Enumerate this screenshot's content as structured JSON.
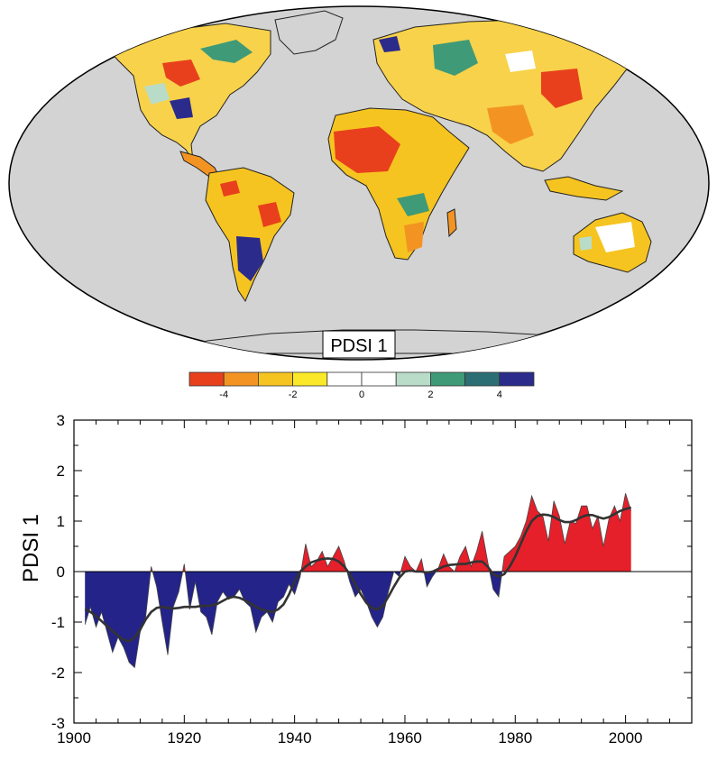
{
  "map": {
    "label": "PDSI 1",
    "colorbar": {
      "colors": [
        "#e8401c",
        "#f39422",
        "#f6c420",
        "#fbe829",
        "#ffffff",
        "#ffffff",
        "#b9dcc8",
        "#3f9a78",
        "#2b6f75",
        "#2b2b8c"
      ],
      "tick_labels": [
        "-4",
        "-2",
        "0",
        "2",
        "4"
      ]
    }
  },
  "chart_data": {
    "type": "area",
    "title": "",
    "xlabel": "",
    "ylabel": "PDSI 1",
    "xlim": [
      1900,
      2012
    ],
    "ylim": [
      -3,
      3
    ],
    "xticks": [
      1900,
      1920,
      1940,
      1960,
      1980,
      2000
    ],
    "yticks": [
      -3,
      -2,
      -1,
      0,
      1,
      2,
      3
    ],
    "colors": {
      "positive": "#e5202a",
      "negative": "#23238a",
      "smooth_line": "#333333"
    },
    "series": [
      {
        "x": [
          1902,
          1903,
          1904,
          1905,
          1906,
          1907,
          1908,
          1909,
          1910,
          1911,
          1912,
          1913,
          1914,
          1915,
          1916,
          1917,
          1918,
          1919,
          1920,
          1921,
          1922,
          1923,
          1924,
          1925,
          1926,
          1927,
          1928,
          1929,
          1930,
          1931,
          1932,
          1933,
          1934,
          1935,
          1936,
          1937,
          1938,
          1939,
          1940,
          1941,
          1942,
          1943,
          1944,
          1945,
          1946,
          1947,
          1948,
          1949,
          1950,
          1951,
          1952,
          1953,
          1954,
          1955,
          1956,
          1957,
          1958,
          1959,
          1960,
          1961,
          1962,
          1963,
          1964,
          1965,
          1966,
          1967,
          1968,
          1969,
          1970,
          1971,
          1972,
          1973,
          1974,
          1975,
          1976,
          1977,
          1978,
          1979,
          1980,
          1981,
          1982,
          1983,
          1984,
          1985,
          1986,
          1987,
          1988,
          1989,
          1990,
          1991,
          1992,
          1993,
          1994,
          1995,
          1996,
          1997,
          1998,
          1999,
          2000,
          2001
        ],
        "values": [
          -1.05,
          -0.7,
          -1.1,
          -0.8,
          -1.2,
          -1.6,
          -1.3,
          -1.5,
          -1.8,
          -1.9,
          -1.2,
          -0.9,
          0.1,
          -0.3,
          -1.0,
          -1.65,
          -0.7,
          -0.4,
          0.15,
          -0.75,
          -0.2,
          -0.8,
          -0.9,
          -1.25,
          -0.6,
          -0.4,
          -0.55,
          -0.5,
          -0.35,
          -0.6,
          -0.7,
          -1.2,
          -0.9,
          -0.8,
          -1.0,
          -0.6,
          -0.5,
          -0.25,
          -0.45,
          -0.1,
          0.55,
          0.1,
          0.2,
          0.4,
          0.1,
          0.3,
          0.5,
          0.2,
          -0.2,
          -0.5,
          -0.35,
          -0.6,
          -0.9,
          -1.1,
          -0.9,
          -0.4,
          0.0,
          -0.1,
          0.3,
          0.1,
          0.0,
          0.25,
          -0.3,
          -0.1,
          0.05,
          0.35,
          0.1,
          0.0,
          0.3,
          0.5,
          0.1,
          0.4,
          0.8,
          0.2,
          -0.35,
          -0.5,
          0.3,
          0.4,
          0.5,
          0.7,
          1.0,
          1.5,
          1.2,
          1.1,
          0.6,
          1.4,
          1.1,
          0.55,
          1.0,
          0.95,
          1.3,
          1.3,
          0.85,
          1.1,
          0.5,
          1.05,
          1.3,
          1.0,
          1.55,
          1.2
        ],
        "smooth": [
          -0.75,
          -0.8,
          -0.88,
          -0.98,
          -1.08,
          -1.18,
          -1.27,
          -1.35,
          -1.38,
          -1.3,
          -1.15,
          -0.95,
          -0.8,
          -0.72,
          -0.7,
          -0.72,
          -0.73,
          -0.72,
          -0.7,
          -0.7,
          -0.7,
          -0.68,
          -0.68,
          -0.67,
          -0.64,
          -0.58,
          -0.52,
          -0.5,
          -0.52,
          -0.57,
          -0.63,
          -0.7,
          -0.75,
          -0.78,
          -0.8,
          -0.75,
          -0.65,
          -0.45,
          -0.2,
          0.0,
          0.1,
          0.18,
          0.22,
          0.25,
          0.26,
          0.25,
          0.2,
          0.1,
          -0.05,
          -0.25,
          -0.45,
          -0.62,
          -0.72,
          -0.75,
          -0.68,
          -0.5,
          -0.3,
          -0.12,
          0.0,
          0.02,
          0.0,
          0.0,
          -0.02,
          0.0,
          0.05,
          0.1,
          0.13,
          0.14,
          0.15,
          0.15,
          0.18,
          0.2,
          0.2,
          0.1,
          -0.05,
          -0.1,
          -0.05,
          0.1,
          0.3,
          0.55,
          0.8,
          1.0,
          1.1,
          1.13,
          1.12,
          1.08,
          1.02,
          0.98,
          0.98,
          1.02,
          1.08,
          1.12,
          1.12,
          1.08,
          1.05,
          1.08,
          1.14,
          1.2,
          1.24,
          1.27
        ]
      }
    ]
  }
}
